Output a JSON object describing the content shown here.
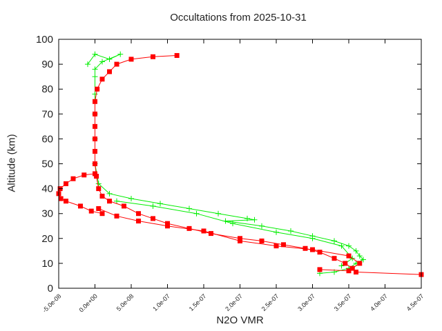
{
  "chart_data": {
    "type": "scatter",
    "title": "Occultations from 2025-10-31",
    "xlabel": "N2O VMR",
    "ylabel": "Altitude (km)",
    "xlim": [
      -5e-08,
      4.5e-07
    ],
    "ylim": [
      0,
      100
    ],
    "xticks": [
      "-5.0e-08",
      "0.0e+00",
      "5.0e-08",
      "1.0e-07",
      "1.5e-07",
      "2.0e-07",
      "2.5e-07",
      "3.0e-07",
      "3.5e-07",
      "4.0e-07",
      "4.5e-07"
    ],
    "xtick_values": [
      -5e-08,
      0,
      5e-08,
      1e-07,
      1.5e-07,
      2e-07,
      2.5e-07,
      3e-07,
      3.5e-07,
      4e-07,
      4.5e-07
    ],
    "yticks": [
      "0",
      "10",
      "20",
      "30",
      "40",
      "50",
      "60",
      "70",
      "80",
      "90",
      "100"
    ],
    "ytick_values": [
      0,
      10,
      20,
      30,
      40,
      50,
      60,
      70,
      80,
      90,
      100
    ],
    "grid": false,
    "legend": "none",
    "series": [
      {
        "color": "#00ee00",
        "marker": "plus",
        "branches": [
          [
            [
              -1e-08,
              90
            ],
            [
              0,
              94
            ],
            [
              2e-08,
              92
            ],
            [
              3.5e-08,
              94
            ],
            [
              1e-08,
              91
            ],
            [
              0,
              88
            ],
            [
              0,
              85
            ],
            [
              0,
              78
            ],
            [
              0,
              70
            ],
            [
              0,
              60
            ],
            [
              0,
              50
            ],
            [
              5e-09,
              42
            ],
            [
              2e-08,
              38
            ],
            [
              5e-08,
              36
            ],
            [
              9e-08,
              34
            ],
            [
              1.3e-07,
              32
            ],
            [
              1.7e-07,
              30
            ],
            [
              2.1e-07,
              28
            ],
            [
              2.2e-07,
              27.5
            ],
            [
              1.8e-07,
              27
            ],
            [
              2.3e-07,
              25
            ],
            [
              2.7e-07,
              23
            ],
            [
              3e-07,
              21
            ],
            [
              3.3e-07,
              19
            ],
            [
              3.5e-07,
              17
            ],
            [
              3.6e-07,
              15
            ],
            [
              3.65e-07,
              13
            ],
            [
              3.7e-07,
              11.5
            ],
            [
              3.6e-07,
              10
            ],
            [
              3.5e-07,
              8
            ],
            [
              3.3e-07,
              6.5
            ],
            [
              3.1e-07,
              6
            ]
          ],
          [
            [
              3e-08,
              35
            ],
            [
              8e-08,
              33
            ],
            [
              1.4e-07,
              30
            ],
            [
              1.9e-07,
              26
            ],
            [
              2.5e-07,
              22.5
            ],
            [
              3e-07,
              20
            ],
            [
              3.4e-07,
              17
            ],
            [
              3.55e-07,
              12
            ],
            [
              3.4e-07,
              9
            ]
          ]
        ]
      },
      {
        "color": "#ff0000",
        "marker": "square",
        "branches": [
          [
            [
              1.13e-07,
              93.5
            ],
            [
              8e-08,
              93
            ],
            [
              5e-08,
              92
            ],
            [
              3e-08,
              90
            ],
            [
              2e-08,
              87
            ],
            [
              1e-08,
              84
            ],
            [
              3e-09,
              80
            ],
            [
              0,
              75
            ],
            [
              0,
              70
            ],
            [
              0,
              65
            ],
            [
              0,
              60
            ],
            [
              0,
              55
            ],
            [
              0,
              50
            ],
            [
              2e-09,
              45
            ],
            [
              5e-09,
              40
            ],
            [
              1e-08,
              37
            ],
            [
              2e-08,
              35
            ],
            [
              4e-08,
              33
            ],
            [
              6e-08,
              30
            ],
            [
              8e-08,
              28
            ],
            [
              1e-07,
              26
            ],
            [
              1.3e-07,
              24
            ],
            [
              1.6e-07,
              22
            ],
            [
              2e-07,
              20
            ],
            [
              2.3e-07,
              19
            ],
            [
              2.6e-07,
              17.5
            ],
            [
              2.9e-07,
              16
            ],
            [
              3.1e-07,
              14.5
            ],
            [
              3.3e-07,
              12
            ],
            [
              3.45e-07,
              10
            ],
            [
              3.55e-07,
              8
            ],
            [
              3.6e-07,
              6.5
            ],
            [
              4.5e-07,
              5.5
            ]
          ],
          [
            [
              0,
              46
            ],
            [
              -1.5e-08,
              45.5
            ],
            [
              -3e-08,
              44
            ],
            [
              -4e-08,
              42
            ],
            [
              -4.8e-08,
              40
            ],
            [
              -5e-08,
              38
            ],
            [
              -4.7e-08,
              36
            ],
            [
              -4e-08,
              35
            ],
            [
              -2e-08,
              33
            ],
            [
              -5e-09,
              31
            ],
            [
              1e-08,
              30
            ]
          ],
          [
            [
              5e-09,
              32
            ],
            [
              3e-08,
              29
            ],
            [
              6e-08,
              27
            ],
            [
              1e-07,
              25
            ],
            [
              1.5e-07,
              23
            ],
            [
              2e-07,
              19
            ],
            [
              2.5e-07,
              17
            ],
            [
              3e-07,
              15.5
            ],
            [
              3.5e-07,
              13
            ],
            [
              3.65e-07,
              10
            ],
            [
              3.5e-07,
              7
            ],
            [
              3.1e-07,
              7.5
            ]
          ]
        ]
      }
    ]
  }
}
